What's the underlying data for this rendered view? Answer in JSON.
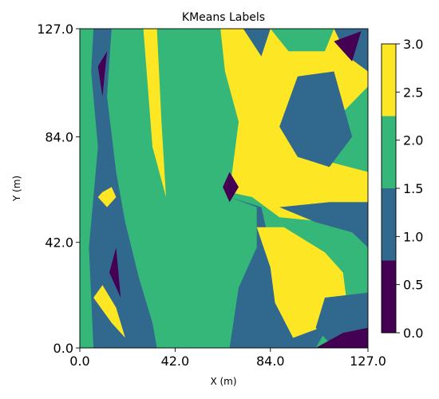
{
  "chart_data": {
    "type": "heatmap",
    "title": "KMeans Labels",
    "xlabel": "X (m)",
    "ylabel": "Y (m)",
    "xlim": [
      0,
      127
    ],
    "ylim": [
      0,
      127
    ],
    "x_ticks": [
      "0.0",
      "42.0",
      "84.0",
      "127.0"
    ],
    "y_ticks": [
      "0.0",
      "42.0",
      "84.0",
      "127.0"
    ],
    "colorbar": {
      "range": [
        0,
        3
      ],
      "ticks": [
        "0.0",
        "0.5",
        "1.0",
        "1.5",
        "2.0",
        "2.5",
        "3.0"
      ],
      "levels": [
        {
          "label": 0,
          "color": "#440154"
        },
        {
          "label": 1,
          "color": "#31688e"
        },
        {
          "label": 2,
          "color": "#35b779"
        },
        {
          "label": 3,
          "color": "#fde725"
        }
      ]
    },
    "regions": [
      {
        "label": 2,
        "points": [
          [
            0,
            0
          ],
          [
            127,
            0
          ],
          [
            127,
            127
          ],
          [
            0,
            127
          ]
        ]
      },
      {
        "label": 1,
        "points": [
          [
            6,
            127
          ],
          [
            14,
            127
          ],
          [
            12,
            100
          ],
          [
            16,
            70
          ],
          [
            20,
            50
          ],
          [
            26,
            28
          ],
          [
            32,
            10
          ],
          [
            34,
            0
          ],
          [
            6,
            0
          ],
          [
            4,
            40
          ],
          [
            8,
            80
          ],
          [
            5,
            110
          ]
        ]
      },
      {
        "label": 0,
        "points": [
          [
            8,
            112
          ],
          [
            10,
            100
          ],
          [
            12,
            118
          ]
        ]
      },
      {
        "label": 0,
        "points": [
          [
            13,
            30
          ],
          [
            16,
            40
          ],
          [
            18,
            20
          ]
        ]
      },
      {
        "label": 3,
        "points": [
          [
            6,
            20
          ],
          [
            14,
            10
          ],
          [
            20,
            4
          ],
          [
            16,
            16
          ],
          [
            10,
            25
          ]
        ]
      },
      {
        "label": 3,
        "points": [
          [
            8,
            60
          ],
          [
            12,
            56
          ],
          [
            16,
            60
          ],
          [
            14,
            64
          ],
          [
            10,
            62
          ]
        ]
      },
      {
        "label": 3,
        "points": [
          [
            28,
            127
          ],
          [
            32,
            80
          ],
          [
            38,
            60
          ],
          [
            36,
            90
          ],
          [
            34,
            127
          ]
        ]
      },
      {
        "label": 3,
        "points": [
          [
            62,
            127
          ],
          [
            127,
            127
          ],
          [
            127,
            104
          ],
          [
            114,
            92
          ],
          [
            104,
            82
          ],
          [
            110,
            74
          ],
          [
            127,
            70
          ],
          [
            127,
            55
          ],
          [
            110,
            50
          ],
          [
            88,
            52
          ],
          [
            76,
            60
          ],
          [
            66,
            62
          ],
          [
            70,
            90
          ],
          [
            64,
            110
          ]
        ]
      },
      {
        "label": 1,
        "points": [
          [
            96,
            108
          ],
          [
            112,
            110
          ],
          [
            120,
            84
          ],
          [
            110,
            72
          ],
          [
            96,
            76
          ],
          [
            88,
            88
          ]
        ]
      },
      {
        "label": 1,
        "points": [
          [
            72,
            127
          ],
          [
            84,
            127
          ],
          [
            80,
            116
          ]
        ]
      },
      {
        "label": 1,
        "points": [
          [
            112,
            127
          ],
          [
            127,
            127
          ],
          [
            127,
            110
          ],
          [
            118,
            116
          ]
        ]
      },
      {
        "label": 2,
        "points": [
          [
            84,
            127
          ],
          [
            112,
            127
          ],
          [
            108,
            118
          ],
          [
            92,
            118
          ]
        ]
      },
      {
        "label": 1,
        "points": [
          [
            66,
            60
          ],
          [
            78,
            56
          ],
          [
            78,
            40
          ],
          [
            70,
            24
          ],
          [
            66,
            0
          ],
          [
            104,
            0
          ],
          [
            114,
            16
          ],
          [
            100,
            30
          ],
          [
            84,
            40
          ],
          [
            80,
            56
          ]
        ]
      },
      {
        "label": 3,
        "points": [
          [
            78,
            48
          ],
          [
            90,
            48
          ],
          [
            108,
            38
          ],
          [
            116,
            30
          ],
          [
            118,
            16
          ],
          [
            106,
            8
          ],
          [
            94,
            4
          ],
          [
            86,
            18
          ],
          [
            84,
            32
          ]
        ]
      },
      {
        "label": 1,
        "points": [
          [
            88,
            56
          ],
          [
            104,
            50
          ],
          [
            120,
            46
          ],
          [
            127,
            40
          ],
          [
            127,
            58
          ],
          [
            110,
            58
          ]
        ]
      },
      {
        "label": 1,
        "points": [
          [
            108,
            20
          ],
          [
            127,
            22
          ],
          [
            127,
            0
          ],
          [
            112,
            0
          ],
          [
            104,
            8
          ]
        ]
      },
      {
        "label": 0,
        "points": [
          [
            104,
            0
          ],
          [
            127,
            0
          ],
          [
            127,
            8
          ],
          [
            116,
            6
          ]
        ]
      },
      {
        "label": 0,
        "points": [
          [
            112,
            122
          ],
          [
            124,
            126
          ],
          [
            120,
            114
          ]
        ]
      },
      {
        "label": 0,
        "points": [
          [
            66,
            70
          ],
          [
            70,
            64
          ],
          [
            66,
            58
          ],
          [
            63,
            64
          ]
        ]
      }
    ]
  }
}
